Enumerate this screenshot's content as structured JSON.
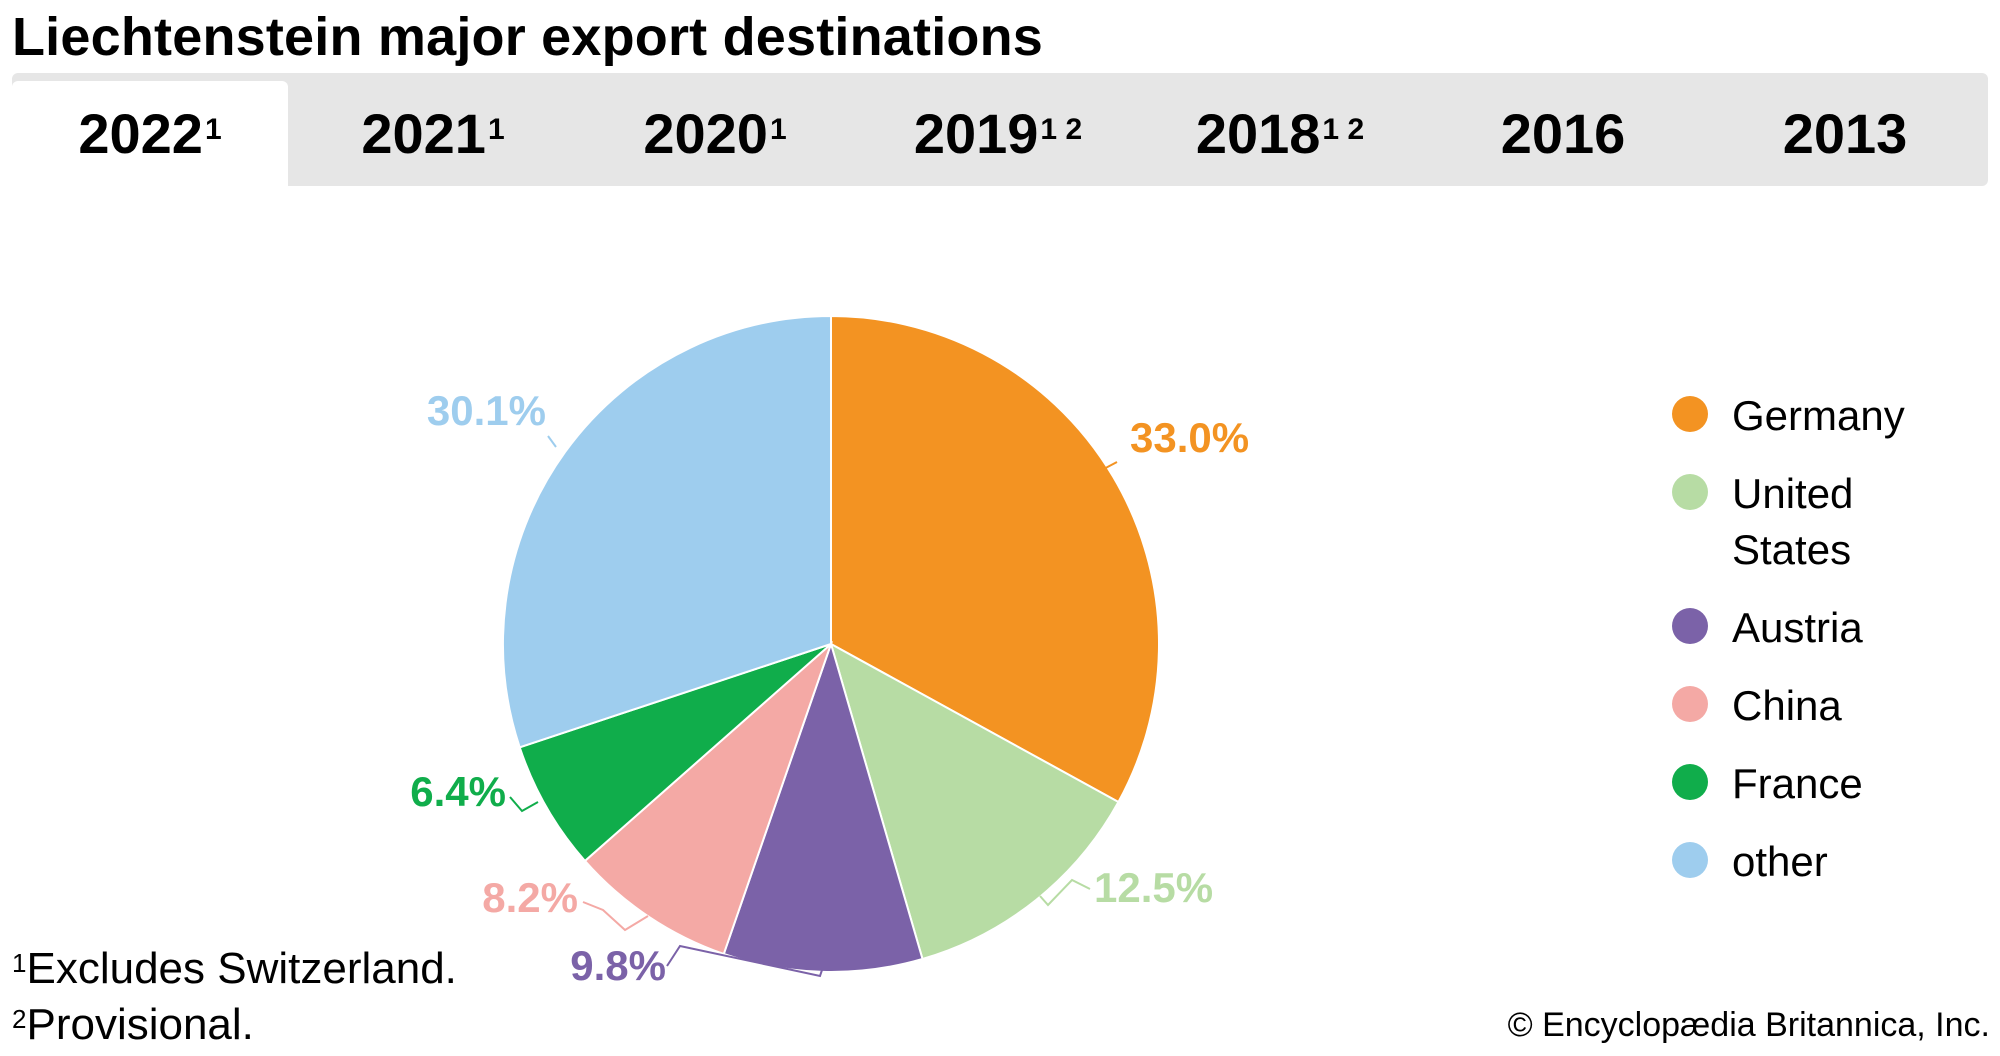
{
  "title": "Liechtenstein major export destinations",
  "tabs": [
    {
      "label": "2022",
      "sup": "1"
    },
    {
      "label": "2021",
      "sup": "1"
    },
    {
      "label": "2020",
      "sup": "1"
    },
    {
      "label": "2019",
      "sup": "1 2"
    },
    {
      "label": "2018",
      "sup": "1 2"
    },
    {
      "label": "2016",
      "sup": ""
    },
    {
      "label": "2013",
      "sup": ""
    }
  ],
  "active_tab": "2022",
  "chart_data": {
    "type": "pie",
    "title": "Liechtenstein major export destinations",
    "year": "2022",
    "categories": [
      "Germany",
      "United States",
      "Austria",
      "China",
      "France",
      "other"
    ],
    "values": [
      33.0,
      12.5,
      9.8,
      8.2,
      6.4,
      30.1
    ],
    "value_labels": [
      "33.0%",
      "12.5%",
      "9.8%",
      "8.2%",
      "6.4%",
      "30.1%"
    ],
    "colors": [
      "#f39322",
      "#b7dca4",
      "#7b62a8",
      "#f4a9a5",
      "#10ad4b",
      "#9ecdee"
    ],
    "label_colors": [
      "#f39322",
      "#b7dca4",
      "#7b62a8",
      "#f4a9a5",
      "#10ad4b",
      "#9ecdee"
    ],
    "start": "12 o'clock",
    "direction": "clockwise",
    "legend_position": "right"
  },
  "legend": [
    {
      "label": "Germany",
      "color": "#f39322"
    },
    {
      "label": "United States",
      "color": "#b7dca4"
    },
    {
      "label": "Austria",
      "color": "#7b62a8"
    },
    {
      "label": "China",
      "color": "#f4a9a5"
    },
    {
      "label": "France",
      "color": "#10ad4b"
    },
    {
      "label": "other",
      "color": "#9ecdee"
    }
  ],
  "footnotes": [
    {
      "marker": "1",
      "text": "Excludes Switzerland."
    },
    {
      "marker": "2",
      "text": "Provisional."
    }
  ],
  "credit": "© Encyclopædia Britannica, Inc."
}
